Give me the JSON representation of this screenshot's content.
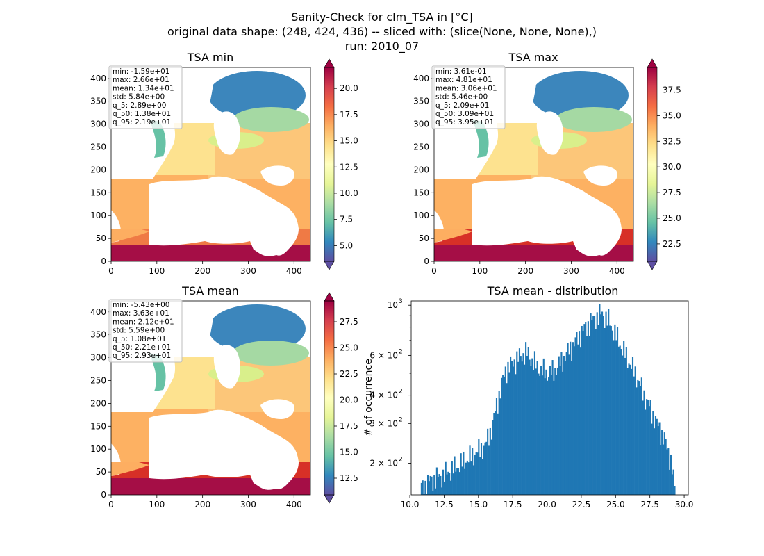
{
  "suptitle": {
    "line1": "Sanity-Check for clm_TSA in [°C]",
    "line2": "original data shape: (248, 424, 436) -- sliced with: (slice(None, None, None),)",
    "line3": "run: 2010_07"
  },
  "colors": {
    "hist_bar": "#1f77b4",
    "spectral": [
      "#5e4fa2",
      "#3288bd",
      "#66c2a5",
      "#abdda4",
      "#e6f598",
      "#ffffbf",
      "#fee08b",
      "#fdae61",
      "#f46d43",
      "#d53e4f",
      "#9e0142"
    ]
  },
  "chart_data": [
    {
      "type": "heatmap",
      "title": "TSA min",
      "xlim": [
        0,
        436
      ],
      "ylim": [
        0,
        424
      ],
      "xticks": [
        "0",
        "100",
        "200",
        "300",
        "400"
      ],
      "yticks": [
        "0",
        "50",
        "100",
        "150",
        "200",
        "250",
        "300",
        "350",
        "400"
      ],
      "colorbar": {
        "min": 3.5,
        "max": 22.0,
        "ticks": [
          "5.0",
          "7.5",
          "10.0",
          "12.5",
          "15.0",
          "17.5",
          "20.0"
        ],
        "cmap": "Spectral_r",
        "extend": "both"
      },
      "stats": [
        "min: -1.59e+01",
        "max: 2.66e+01",
        "mean: 1.34e+01",
        "std: 5.84e+00",
        "q_5: 2.89e+00",
        "q_50: 1.38e+01",
        "q_95: 2.19e+01"
      ]
    },
    {
      "type": "heatmap",
      "title": "TSA max",
      "xlim": [
        0,
        436
      ],
      "ylim": [
        0,
        424
      ],
      "xticks": [
        "0",
        "100",
        "200",
        "300",
        "400"
      ],
      "yticks": [
        "0",
        "50",
        "100",
        "150",
        "200",
        "250",
        "300",
        "350",
        "400"
      ],
      "colorbar": {
        "min": 20.8,
        "max": 39.7,
        "ticks": [
          "22.5",
          "25.0",
          "27.5",
          "30.0",
          "32.5",
          "35.0",
          "37.5"
        ],
        "cmap": "Spectral_r",
        "extend": "both"
      },
      "stats": [
        "min: 3.61e-01",
        "max: 4.81e+01",
        "mean: 3.06e+01",
        "std: 5.46e+00",
        "q_5: 2.09e+01",
        "q_50: 3.09e+01",
        "q_95: 3.95e+01"
      ]
    },
    {
      "type": "heatmap",
      "title": "TSA mean",
      "xlim": [
        0,
        436
      ],
      "ylim": [
        0,
        424
      ],
      "xticks": [
        "0",
        "100",
        "200",
        "300",
        "400"
      ],
      "yticks": [
        "0",
        "50",
        "100",
        "150",
        "200",
        "250",
        "300",
        "350",
        "400"
      ],
      "colorbar": {
        "min": 10.9,
        "max": 29.5,
        "ticks": [
          "12.5",
          "15.0",
          "17.5",
          "20.0",
          "22.5",
          "25.0",
          "27.5"
        ],
        "cmap": "Spectral_r",
        "extend": "both"
      },
      "stats": [
        "min: -5.43e+00",
        "max: 3.63e+01",
        "mean: 2.12e+01",
        "std: 5.59e+00",
        "q_5: 1.08e+01",
        "q_50: 2.21e+01",
        "q_95: 2.93e+01"
      ]
    },
    {
      "type": "bar",
      "title": "TSA mean - distribution",
      "xlabel": "",
      "ylabel": "# of occurrence",
      "xlim": [
        10.1,
        30.3
      ],
      "ylim": [
        145,
        1045
      ],
      "yscale": "log",
      "xticks": [
        "10.0",
        "12.5",
        "15.0",
        "17.5",
        "20.0",
        "22.5",
        "25.0",
        "27.5",
        "30.0"
      ],
      "yticks": [
        {
          "value": 200,
          "base": "2 × 10",
          "exp": "2"
        },
        {
          "value": 300,
          "base": "3 × 10",
          "exp": "2"
        },
        {
          "value": 400,
          "base": "4 × 10",
          "exp": "2"
        },
        {
          "value": 600,
          "base": "6 × 10",
          "exp": "2"
        },
        {
          "value": 1000,
          "base": "10",
          "exp": "3"
        }
      ],
      "profile": [
        [
          10.8,
          155
        ],
        [
          11.5,
          168
        ],
        [
          12.5,
          178
        ],
        [
          13.5,
          195
        ],
        [
          14.5,
          215
        ],
        [
          15.5,
          240
        ],
        [
          16.0,
          290
        ],
        [
          16.5,
          400
        ],
        [
          17.0,
          520
        ],
        [
          17.5,
          555
        ],
        [
          18.0,
          590
        ],
        [
          18.5,
          620
        ],
        [
          19.0,
          560
        ],
        [
          19.5,
          520
        ],
        [
          20.0,
          500
        ],
        [
          20.5,
          510
        ],
        [
          21.0,
          560
        ],
        [
          21.5,
          620
        ],
        [
          22.0,
          680
        ],
        [
          22.5,
          760
        ],
        [
          23.0,
          820
        ],
        [
          23.5,
          880
        ],
        [
          24.0,
          920
        ],
        [
          24.5,
          850
        ],
        [
          25.0,
          740
        ],
        [
          25.5,
          640
        ],
        [
          26.0,
          560
        ],
        [
          26.5,
          490
        ],
        [
          27.0,
          410
        ],
        [
          27.5,
          350
        ],
        [
          28.0,
          300
        ],
        [
          28.5,
          260
        ],
        [
          29.0,
          210
        ],
        [
          29.3,
          155
        ]
      ]
    }
  ]
}
